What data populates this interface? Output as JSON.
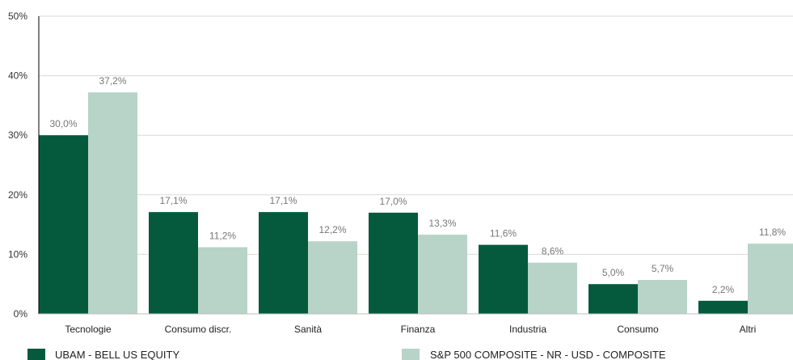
{
  "chart_data": {
    "type": "bar",
    "categories": [
      "Tecnologie",
      "Consumo discr.",
      "Sanità",
      "Finanza",
      "Industria",
      "Consumo",
      "Altri"
    ],
    "series": [
      {
        "name": "UBAM - BELL US EQUITY",
        "color": "#055a3e",
        "values": [
          30.0,
          17.1,
          17.1,
          17.0,
          11.6,
          5.0,
          2.2
        ],
        "labels": [
          "30,0%",
          "17,1%",
          "17,1%",
          "17,0%",
          "11,6%",
          "5,0%",
          "2,2%"
        ]
      },
      {
        "name": "S&P 500 COMPOSITE - NR - USD - COMPOSITE",
        "color": "#b8d3c8",
        "values": [
          37.2,
          11.2,
          12.2,
          13.3,
          8.6,
          5.7,
          11.8
        ],
        "labels": [
          "37,2%",
          "11,2%",
          "12,2%",
          "13,3%",
          "8,6%",
          "5,7%",
          "11,8%"
        ]
      }
    ],
    "ylim": [
      0,
      50
    ],
    "yticks": [
      0,
      10,
      20,
      30,
      40,
      50
    ],
    "ytick_labels": [
      "0%",
      "10%",
      "20%",
      "30%",
      "40%",
      "50%"
    ],
    "grid": true,
    "legend_position": "bottom"
  }
}
